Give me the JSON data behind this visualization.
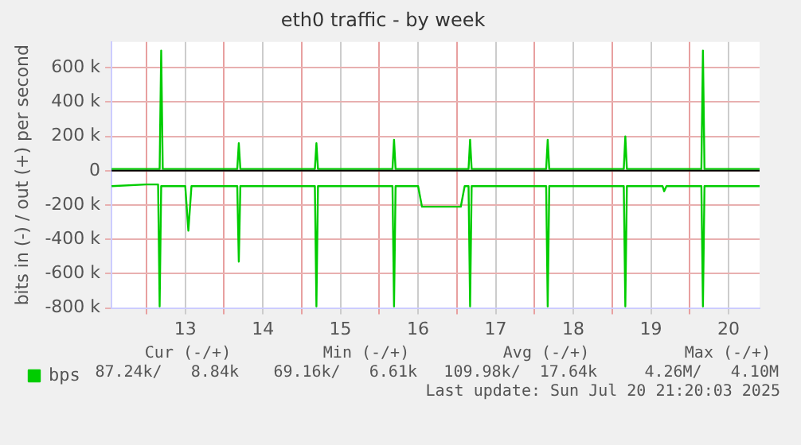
{
  "chart_data": {
    "type": "line",
    "title": "eth0 traffic - by week",
    "ylabel": "bits in (-) / out (+) per second",
    "xlim": [
      12.55,
      20.9
    ],
    "xticks": [
      {
        "value": 13,
        "label": null
      },
      {
        "value": 13.5,
        "label": "13"
      },
      {
        "value": 14,
        "label": null
      },
      {
        "value": 14.5,
        "label": "14"
      },
      {
        "value": 15,
        "label": null
      },
      {
        "value": 15.5,
        "label": "15"
      },
      {
        "value": 16,
        "label": null
      },
      {
        "value": 16.5,
        "label": "16"
      },
      {
        "value": 17,
        "label": null
      },
      {
        "value": 17.5,
        "label": "17"
      },
      {
        "value": 18,
        "label": null
      },
      {
        "value": 18.5,
        "label": "18"
      },
      {
        "value": 19,
        "label": null
      },
      {
        "value": 19.5,
        "label": "19"
      },
      {
        "value": 20,
        "label": null
      },
      {
        "value": 20.5,
        "label": "20"
      }
    ],
    "ylim": [
      -800000,
      750000
    ],
    "yticks": [
      {
        "value": -800000,
        "label": "-800 k"
      },
      {
        "value": -600000,
        "label": "-600 k"
      },
      {
        "value": -400000,
        "label": "-400 k"
      },
      {
        "value": -200000,
        "label": "-200 k"
      },
      {
        "value": 0,
        "label": "0"
      },
      {
        "value": 200000,
        "label": "200 k"
      },
      {
        "value": 400000,
        "label": "400 k"
      },
      {
        "value": 600000,
        "label": "600 k"
      }
    ],
    "grid": true,
    "legend": "bottom",
    "marker": "none",
    "line_style": "solid",
    "ref_lines": [
      {
        "axis": "y",
        "value": 0,
        "color": "#000000"
      }
    ],
    "series": [
      {
        "name": "bps",
        "color": "#00cc00",
        "x": [
          12.55,
          13.17,
          13.19,
          13.21,
          14.17,
          14.19,
          14.21,
          15.17,
          15.19,
          15.21,
          16.17,
          16.19,
          16.21,
          17.15,
          17.17,
          17.19,
          18.15,
          18.17,
          18.19,
          19.15,
          19.17,
          19.19,
          20.15,
          20.17,
          20.19,
          20.9
        ],
        "values": [
          10000,
          10000,
          700000,
          10000,
          10000,
          160000,
          10000,
          10000,
          160000,
          10000,
          10000,
          180000,
          10000,
          10000,
          180000,
          10000,
          10000,
          180000,
          10000,
          10000,
          200000,
          10000,
          10000,
          700000,
          10000,
          10000
        ]
      },
      {
        "color": "#00cc00",
        "x": [
          12.55,
          13.0,
          13.15,
          13.17,
          13.19,
          13.5,
          13.54,
          13.58,
          14.17,
          14.19,
          14.21,
          15.17,
          15.19,
          15.21,
          16.17,
          16.19,
          16.21,
          16.5,
          16.55,
          17.05,
          17.1,
          17.15,
          17.17,
          17.19,
          18.15,
          18.17,
          18.19,
          19.15,
          19.17,
          19.19,
          19.65,
          19.67,
          19.7,
          20.15,
          20.17,
          20.19,
          20.9
        ],
        "values": [
          -90000,
          -80000,
          -80000,
          -790000,
          -90000,
          -90000,
          -350000,
          -90000,
          -90000,
          -530000,
          -90000,
          -90000,
          -790000,
          -90000,
          -90000,
          -790000,
          -90000,
          -90000,
          -210000,
          -210000,
          -90000,
          -90000,
          -790000,
          -90000,
          -90000,
          -790000,
          -90000,
          -90000,
          -790000,
          -90000,
          -90000,
          -120000,
          -90000,
          -90000,
          -790000,
          -90000,
          -90000
        ]
      }
    ],
    "annotations": [
      "Cur (-/+)",
      "Min (-/+)",
      "Avg (-/+)",
      "Max (-/+)",
      "87.24k/   8.84k",
      "69.16k/   6.61k",
      "109.98k/  17.64k",
      "4.26M/   4.10M",
      "Last update: Sun Jul 20 21:20:03 2025"
    ]
  }
}
